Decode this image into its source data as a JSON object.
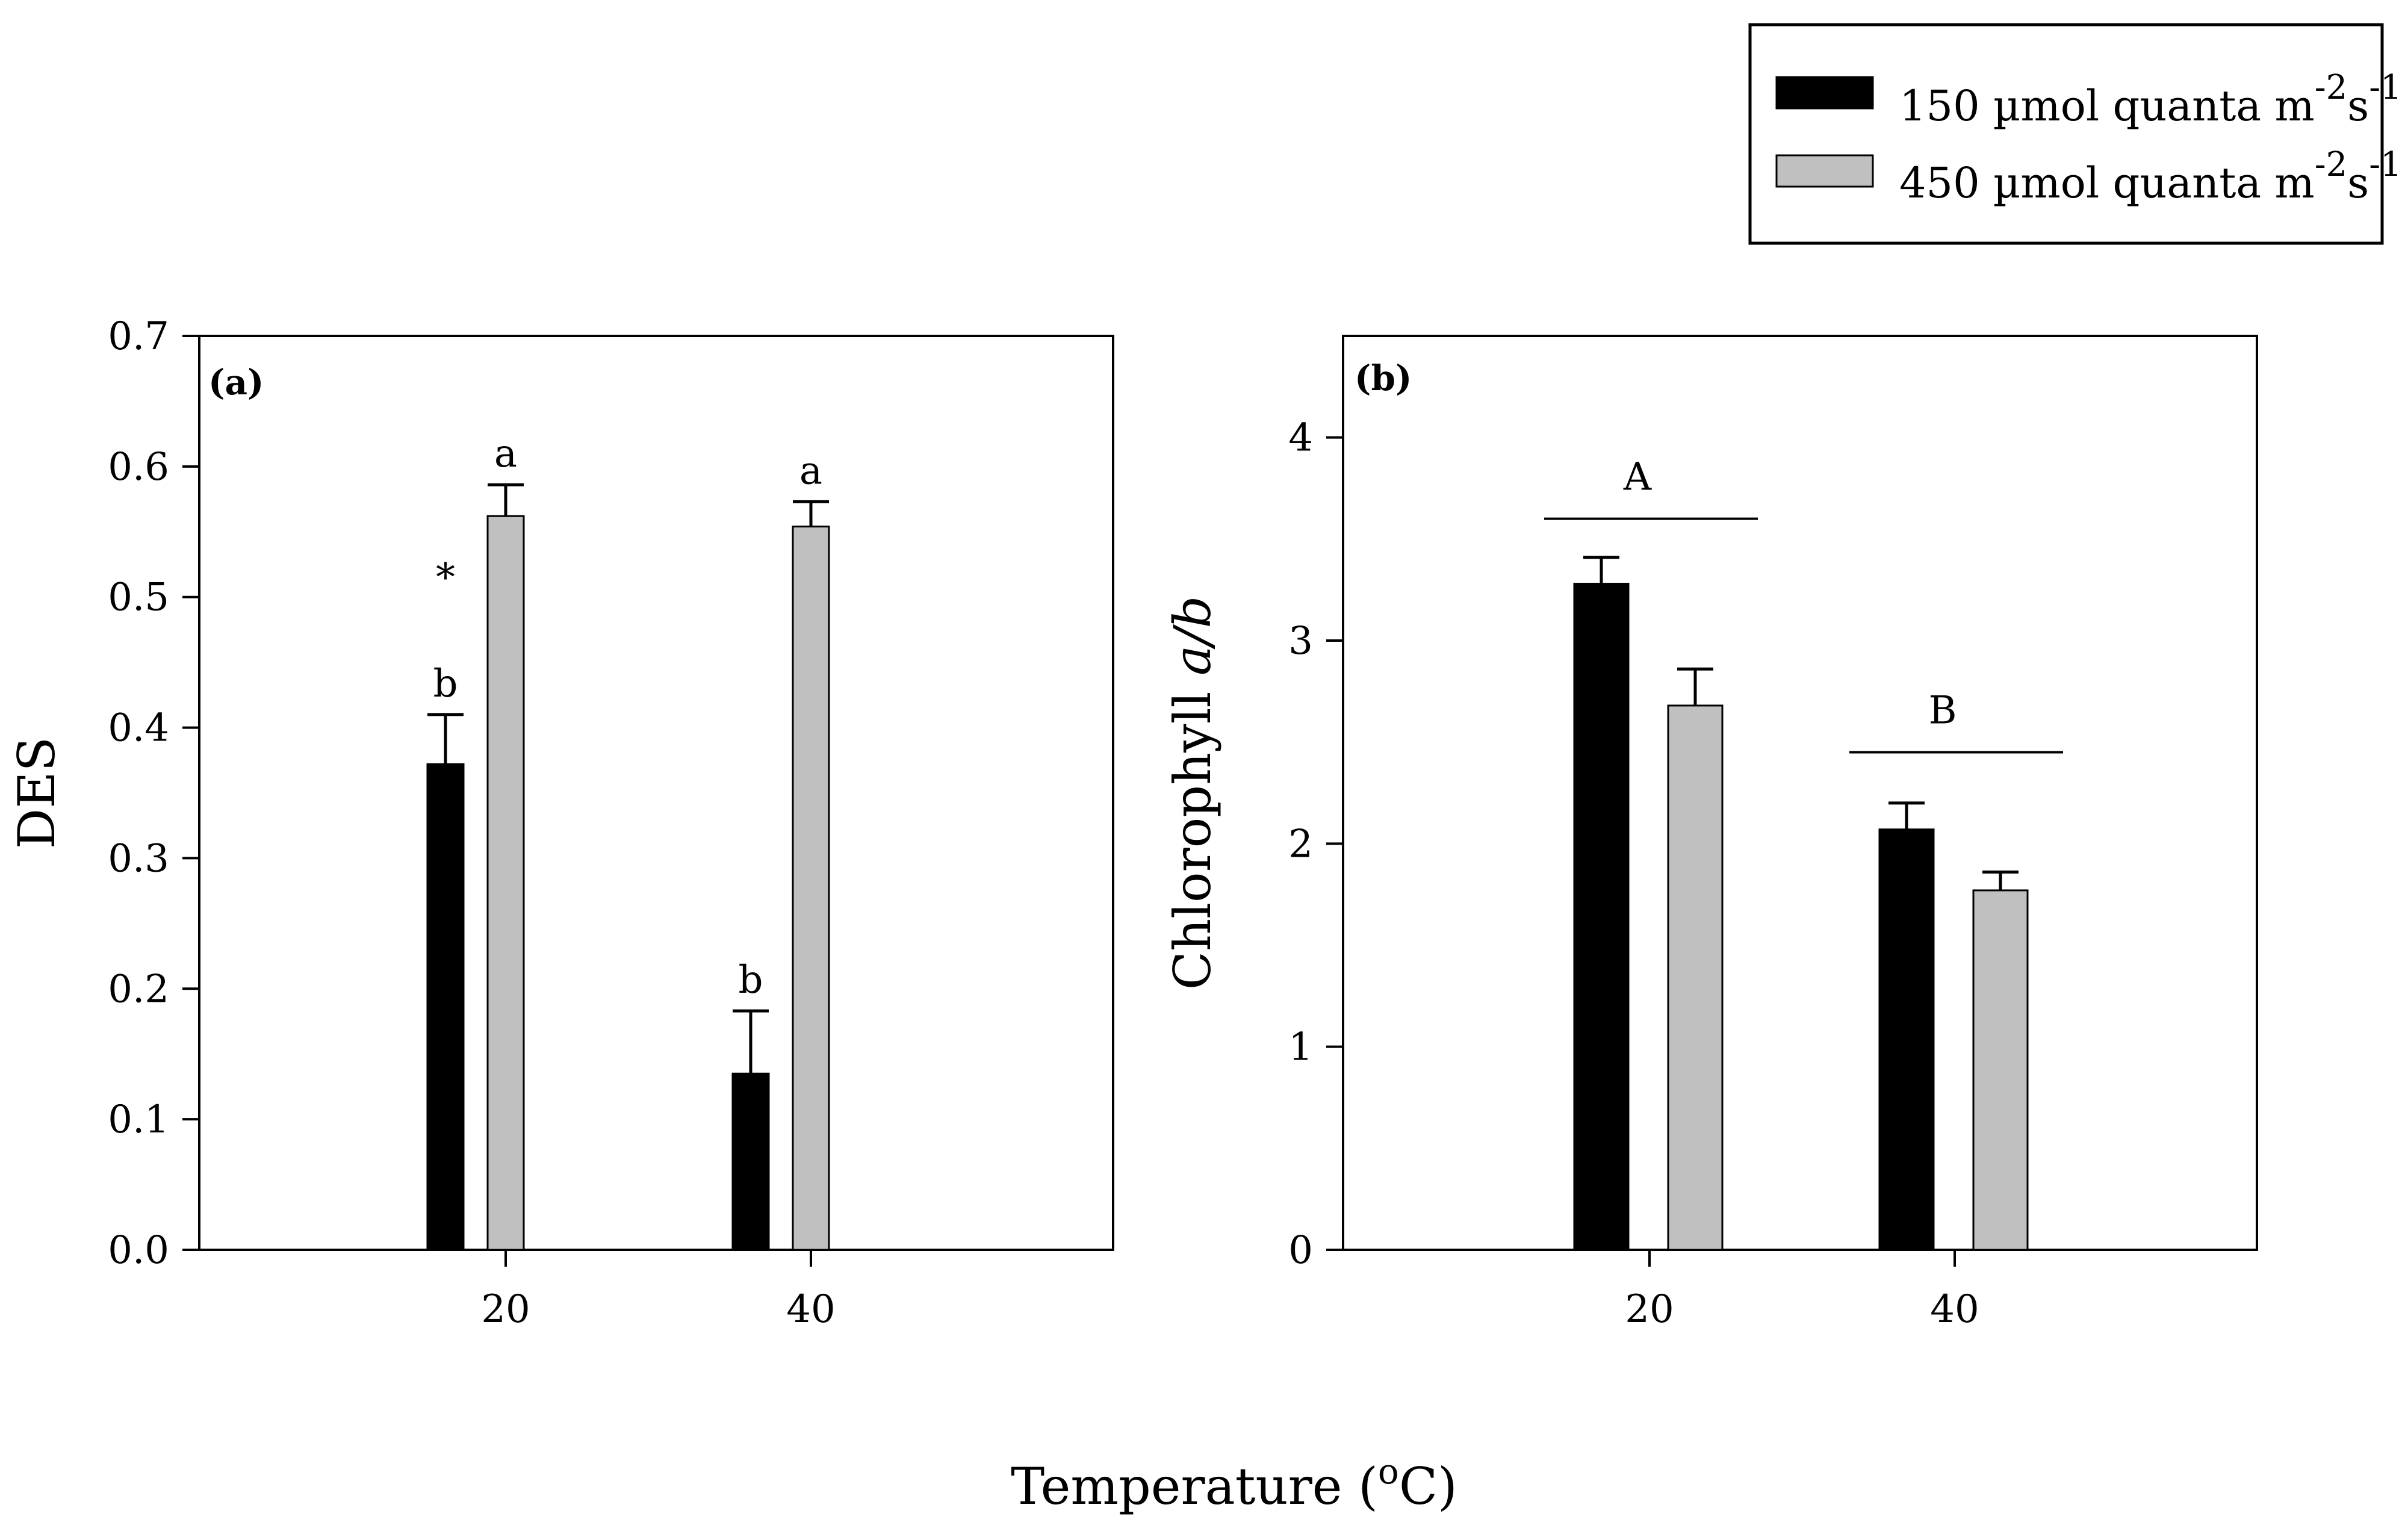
{
  "figure": {
    "shared_xlabel": "Temperature (",
    "shared_xlabel_unit": "o",
    "shared_xlabel_end": "C)",
    "legend": {
      "entries": [
        {
          "prefix": "150 µmol quanta m",
          "sup1": "-2",
          "mid": "s",
          "sup2": "-1",
          "color": "#000000"
        },
        {
          "prefix": "450 µmol quanta m",
          "sup1": "-2",
          "mid": "s",
          "sup2": "-1",
          "color": "#c0c0c0"
        }
      ]
    }
  },
  "chart_data": [
    {
      "type": "bar",
      "panel_label": "(a)",
      "title": "",
      "xlabel": "Temperature (°C)",
      "ylabel": "DES",
      "categories": [
        "20",
        "40"
      ],
      "ylim": [
        0,
        0.7
      ],
      "yticks": [
        0.0,
        0.1,
        0.2,
        0.3,
        0.4,
        0.5,
        0.6,
        0.7
      ],
      "ytick_labels": [
        "0.0",
        "0.1",
        "0.2",
        "0.3",
        "0.4",
        "0.5",
        "0.6",
        "0.7"
      ],
      "series": [
        {
          "name": "150 µmol quanta m-2s-1",
          "color": "#000000",
          "values": [
            0.372,
            0.135
          ],
          "errors": [
            0.038,
            0.048
          ],
          "letters": [
            "b",
            "b"
          ]
        },
        {
          "name": "450 µmol quanta m-2s-1",
          "color": "#c0c0c0",
          "values": [
            0.562,
            0.554
          ],
          "errors": [
            0.024,
            0.019
          ],
          "letters": [
            "a",
            "a"
          ]
        }
      ],
      "annotations": [
        {
          "text": "*",
          "category": "20",
          "series": 0,
          "value": 0.505
        }
      ]
    },
    {
      "type": "bar",
      "panel_label": "(b)",
      "title": "",
      "xlabel": "Temperature (°C)",
      "ylabel_prefix": "Chlorophyll ",
      "ylabel_italic": "a/b",
      "categories": [
        "20",
        "40"
      ],
      "ylim": [
        0,
        4.5
      ],
      "yticks": [
        0,
        1,
        2,
        3,
        4
      ],
      "ytick_labels": [
        "0",
        "1",
        "2",
        "3",
        "4"
      ],
      "series": [
        {
          "name": "150 µmol quanta m-2s-1",
          "color": "#000000",
          "values": [
            3.28,
            2.07
          ],
          "errors": [
            0.13,
            0.13
          ]
        },
        {
          "name": "450 µmol quanta m-2s-1",
          "color": "#c0c0c0",
          "values": [
            2.68,
            1.77
          ],
          "errors": [
            0.18,
            0.09
          ]
        }
      ],
      "group_annotations": [
        {
          "text": "A",
          "category": "20",
          "value": 3.6
        },
        {
          "text": "B",
          "category": "40",
          "value": 2.45
        }
      ]
    }
  ]
}
